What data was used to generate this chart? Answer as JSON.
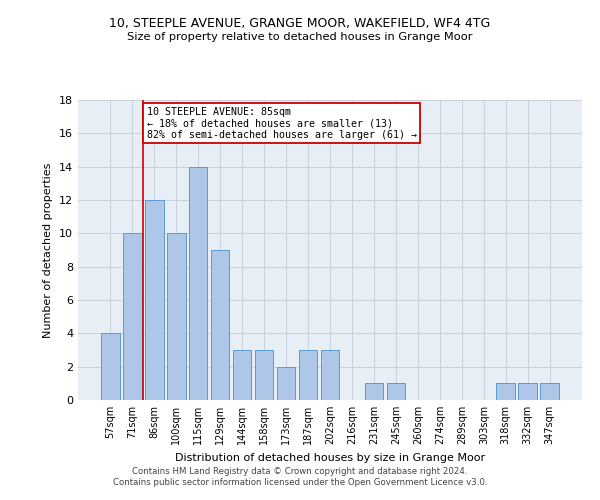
{
  "title1": "10, STEEPLE AVENUE, GRANGE MOOR, WAKEFIELD, WF4 4TG",
  "title2": "Size of property relative to detached houses in Grange Moor",
  "xlabel": "Distribution of detached houses by size in Grange Moor",
  "ylabel": "Number of detached properties",
  "categories": [
    "57sqm",
    "71sqm",
    "86sqm",
    "100sqm",
    "115sqm",
    "129sqm",
    "144sqm",
    "158sqm",
    "173sqm",
    "187sqm",
    "202sqm",
    "216sqm",
    "231sqm",
    "245sqm",
    "260sqm",
    "274sqm",
    "289sqm",
    "303sqm",
    "318sqm",
    "332sqm",
    "347sqm"
  ],
  "values": [
    4,
    10,
    12,
    10,
    14,
    9,
    3,
    3,
    2,
    3,
    3,
    0,
    1,
    1,
    0,
    0,
    0,
    0,
    1,
    1,
    1
  ],
  "bar_color": "#aec6e8",
  "bar_edgecolor": "#5b9bd5",
  "vline_index": 2,
  "vline_color": "#cc0000",
  "annotation_line1": "10 STEEPLE AVENUE: 85sqm",
  "annotation_line2": "← 18% of detached houses are smaller (13)",
  "annotation_line3": "82% of semi-detached houses are larger (61) →",
  "annotation_box_color": "#cc0000",
  "ylim": [
    0,
    18
  ],
  "yticks": [
    0,
    2,
    4,
    6,
    8,
    10,
    12,
    14,
    16,
    18
  ],
  "grid_color": "#c8d0dc",
  "background_color": "#e8eef6",
  "footer1": "Contains HM Land Registry data © Crown copyright and database right 2024.",
  "footer2": "Contains public sector information licensed under the Open Government Licence v3.0."
}
